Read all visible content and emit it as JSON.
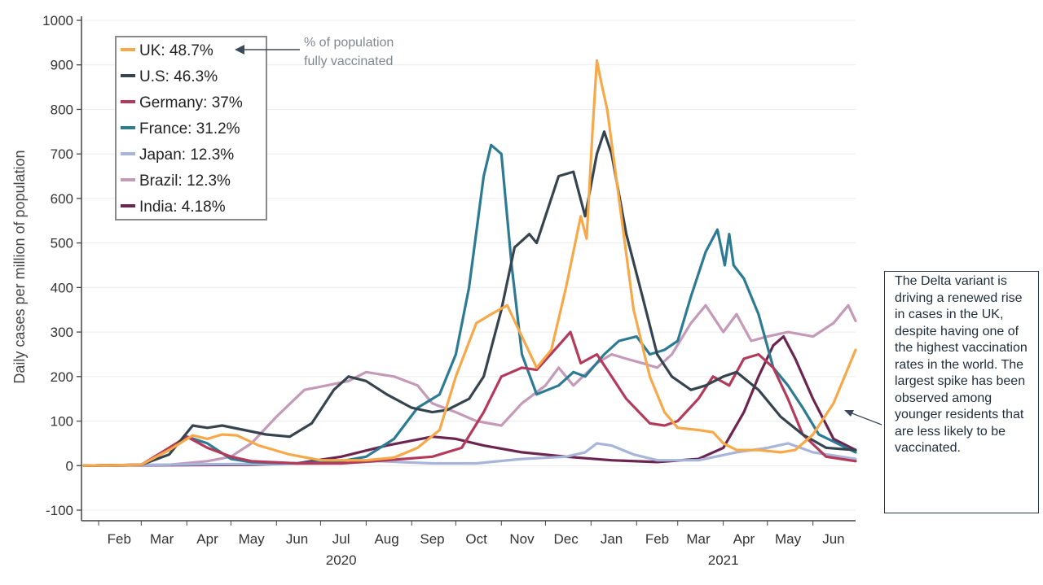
{
  "chart_data": {
    "type": "line",
    "ylabel": "Daily cases per million of population",
    "ylim": [
      -100,
      1000
    ],
    "yticks": [
      -100,
      0,
      100,
      200,
      300,
      400,
      500,
      600,
      700,
      800,
      900,
      1000
    ],
    "xlim": [
      "2020-01-22",
      "2021-06-30"
    ],
    "xticks": [
      {
        "label": "Feb",
        "date": "2020-02-15"
      },
      {
        "label": "Mar",
        "date": "2020-03-15"
      },
      {
        "label": "Apr",
        "date": "2020-04-15"
      },
      {
        "label": "May",
        "date": "2020-05-15"
      },
      {
        "label": "Jun",
        "date": "2020-06-15"
      },
      {
        "label": "Jul",
        "date": "2020-07-15"
      },
      {
        "label": "Aug",
        "date": "2020-08-15"
      },
      {
        "label": "Sep",
        "date": "2020-09-15"
      },
      {
        "label": "Oct",
        "date": "2020-10-15"
      },
      {
        "label": "Nov",
        "date": "2020-11-15"
      },
      {
        "label": "Dec",
        "date": "2020-12-15"
      },
      {
        "label": "Jan",
        "date": "2021-01-15"
      },
      {
        "label": "Feb",
        "date": "2021-02-15"
      },
      {
        "label": "Mar",
        "date": "2021-03-15"
      },
      {
        "label": "Apr",
        "date": "2021-04-15"
      },
      {
        "label": "May",
        "date": "2021-05-15"
      },
      {
        "label": "Jun",
        "date": "2021-06-15"
      }
    ],
    "year_labels": [
      {
        "label": "2020",
        "date": "2020-07-15"
      },
      {
        "label": "2021",
        "date": "2021-04-01"
      }
    ],
    "grid": "horizontal",
    "legend_placement": "top-left",
    "series": [
      {
        "name": "UK: 48.7%",
        "color": "#f7a94a",
        "points": [
          [
            "2020-01-22",
            0
          ],
          [
            "2020-03-01",
            2
          ],
          [
            "2020-03-20",
            35
          ],
          [
            "2020-04-05",
            68
          ],
          [
            "2020-04-15",
            60
          ],
          [
            "2020-04-25",
            70
          ],
          [
            "2020-05-05",
            68
          ],
          [
            "2020-05-20",
            45
          ],
          [
            "2020-06-10",
            25
          ],
          [
            "2020-07-01",
            12
          ],
          [
            "2020-08-01",
            12
          ],
          [
            "2020-08-20",
            18
          ],
          [
            "2020-09-05",
            40
          ],
          [
            "2020-09-20",
            80
          ],
          [
            "2020-10-01",
            200
          ],
          [
            "2020-10-15",
            320
          ],
          [
            "2020-10-25",
            340
          ],
          [
            "2020-11-05",
            360
          ],
          [
            "2020-11-15",
            290
          ],
          [
            "2020-11-25",
            220
          ],
          [
            "2020-12-05",
            260
          ],
          [
            "2020-12-15",
            400
          ],
          [
            "2020-12-25",
            560
          ],
          [
            "2020-12-29",
            510
          ],
          [
            "2021-01-02",
            750
          ],
          [
            "2021-01-05",
            910
          ],
          [
            "2021-01-08",
            860
          ],
          [
            "2021-01-12",
            800
          ],
          [
            "2021-01-20",
            600
          ],
          [
            "2021-01-30",
            350
          ],
          [
            "2021-02-10",
            200
          ],
          [
            "2021-02-20",
            120
          ],
          [
            "2021-03-01",
            85
          ],
          [
            "2021-03-15",
            80
          ],
          [
            "2021-03-25",
            75
          ],
          [
            "2021-04-01",
            50
          ],
          [
            "2021-04-10",
            35
          ],
          [
            "2021-04-25",
            35
          ],
          [
            "2021-05-10",
            30
          ],
          [
            "2021-05-20",
            35
          ],
          [
            "2021-06-01",
            70
          ],
          [
            "2021-06-15",
            140
          ],
          [
            "2021-06-30",
            260
          ]
        ]
      },
      {
        "name": "U.S: 46.3%",
        "color": "#35444f",
        "points": [
          [
            "2020-01-22",
            0
          ],
          [
            "2020-03-01",
            2
          ],
          [
            "2020-03-20",
            25
          ],
          [
            "2020-04-05",
            90
          ],
          [
            "2020-04-15",
            85
          ],
          [
            "2020-04-25",
            90
          ],
          [
            "2020-05-10",
            80
          ],
          [
            "2020-05-25",
            70
          ],
          [
            "2020-06-10",
            65
          ],
          [
            "2020-06-25",
            95
          ],
          [
            "2020-07-10",
            170
          ],
          [
            "2020-07-20",
            200
          ],
          [
            "2020-08-01",
            190
          ],
          [
            "2020-08-15",
            160
          ],
          [
            "2020-09-01",
            130
          ],
          [
            "2020-09-15",
            120
          ],
          [
            "2020-09-25",
            125
          ],
          [
            "2020-10-10",
            150
          ],
          [
            "2020-10-20",
            200
          ],
          [
            "2020-11-01",
            350
          ],
          [
            "2020-11-10",
            490
          ],
          [
            "2020-11-20",
            520
          ],
          [
            "2020-11-25",
            500
          ],
          [
            "2020-12-01",
            560
          ],
          [
            "2020-12-10",
            650
          ],
          [
            "2020-12-20",
            660
          ],
          [
            "2020-12-28",
            560
          ],
          [
            "2021-01-05",
            700
          ],
          [
            "2021-01-10",
            750
          ],
          [
            "2021-01-15",
            700
          ],
          [
            "2021-01-25",
            520
          ],
          [
            "2021-02-05",
            380
          ],
          [
            "2021-02-15",
            250
          ],
          [
            "2021-02-25",
            200
          ],
          [
            "2021-03-10",
            170
          ],
          [
            "2021-03-20",
            180
          ],
          [
            "2021-04-01",
            200
          ],
          [
            "2021-04-10",
            210
          ],
          [
            "2021-04-25",
            170
          ],
          [
            "2021-05-10",
            110
          ],
          [
            "2021-05-25",
            70
          ],
          [
            "2021-06-10",
            40
          ],
          [
            "2021-06-30",
            35
          ]
        ]
      },
      {
        "name": "Germany: 37%",
        "color": "#b33a5a",
        "points": [
          [
            "2020-01-22",
            0
          ],
          [
            "2020-03-01",
            2
          ],
          [
            "2020-03-20",
            40
          ],
          [
            "2020-04-01",
            65
          ],
          [
            "2020-04-15",
            40
          ],
          [
            "2020-05-01",
            20
          ],
          [
            "2020-05-15",
            10
          ],
          [
            "2020-06-15",
            5
          ],
          [
            "2020-07-15",
            5
          ],
          [
            "2020-08-15",
            12
          ],
          [
            "2020-09-15",
            20
          ],
          [
            "2020-10-05",
            40
          ],
          [
            "2020-10-20",
            120
          ],
          [
            "2020-11-01",
            200
          ],
          [
            "2020-11-15",
            220
          ],
          [
            "2020-11-25",
            215
          ],
          [
            "2020-12-10",
            270
          ],
          [
            "2020-12-18",
            300
          ],
          [
            "2020-12-25",
            230
          ],
          [
            "2021-01-05",
            250
          ],
          [
            "2021-01-15",
            200
          ],
          [
            "2021-01-25",
            150
          ],
          [
            "2021-02-10",
            95
          ],
          [
            "2021-02-20",
            90
          ],
          [
            "2021-03-01",
            100
          ],
          [
            "2021-03-15",
            150
          ],
          [
            "2021-03-25",
            200
          ],
          [
            "2021-04-05",
            180
          ],
          [
            "2021-04-15",
            240
          ],
          [
            "2021-04-25",
            250
          ],
          [
            "2021-05-05",
            220
          ],
          [
            "2021-05-15",
            150
          ],
          [
            "2021-05-25",
            70
          ],
          [
            "2021-06-10",
            20
          ],
          [
            "2021-06-30",
            10
          ]
        ]
      },
      {
        "name": "France: 31.2%",
        "color": "#2c7b93",
        "points": [
          [
            "2020-01-22",
            0
          ],
          [
            "2020-03-01",
            2
          ],
          [
            "2020-03-20",
            35
          ],
          [
            "2020-04-01",
            65
          ],
          [
            "2020-04-15",
            50
          ],
          [
            "2020-05-01",
            15
          ],
          [
            "2020-05-15",
            8
          ],
          [
            "2020-06-15",
            5
          ],
          [
            "2020-07-15",
            10
          ],
          [
            "2020-08-01",
            20
          ],
          [
            "2020-08-20",
            60
          ],
          [
            "2020-09-05",
            130
          ],
          [
            "2020-09-20",
            160
          ],
          [
            "2020-10-01",
            250
          ],
          [
            "2020-10-10",
            400
          ],
          [
            "2020-10-20",
            650
          ],
          [
            "2020-10-25",
            720
          ],
          [
            "2020-11-01",
            700
          ],
          [
            "2020-11-08",
            450
          ],
          [
            "2020-11-15",
            250
          ],
          [
            "2020-11-25",
            160
          ],
          [
            "2020-12-10",
            180
          ],
          [
            "2020-12-20",
            210
          ],
          [
            "2020-12-28",
            200
          ],
          [
            "2021-01-10",
            250
          ],
          [
            "2021-01-20",
            280
          ],
          [
            "2021-02-01",
            290
          ],
          [
            "2021-02-10",
            250
          ],
          [
            "2021-02-20",
            260
          ],
          [
            "2021-03-01",
            280
          ],
          [
            "2021-03-10",
            380
          ],
          [
            "2021-03-20",
            480
          ],
          [
            "2021-03-28",
            530
          ],
          [
            "2021-04-02",
            450
          ],
          [
            "2021-04-05",
            520
          ],
          [
            "2021-04-08",
            450
          ],
          [
            "2021-04-15",
            420
          ],
          [
            "2021-04-25",
            340
          ],
          [
            "2021-05-05",
            220
          ],
          [
            "2021-05-15",
            180
          ],
          [
            "2021-05-25",
            130
          ],
          [
            "2021-06-05",
            70
          ],
          [
            "2021-06-30",
            30
          ]
        ]
      },
      {
        "name": "Japan: 12.3%",
        "color": "#a6b5d9",
        "points": [
          [
            "2020-01-22",
            0
          ],
          [
            "2020-04-15",
            3
          ],
          [
            "2020-07-15",
            5
          ],
          [
            "2020-08-10",
            10
          ],
          [
            "2020-09-15",
            5
          ],
          [
            "2020-10-15",
            5
          ],
          [
            "2020-11-15",
            15
          ],
          [
            "2020-12-15",
            20
          ],
          [
            "2020-12-28",
            30
          ],
          [
            "2021-01-05",
            50
          ],
          [
            "2021-01-15",
            45
          ],
          [
            "2021-01-30",
            25
          ],
          [
            "2021-02-15",
            12
          ],
          [
            "2021-03-15",
            12
          ],
          [
            "2021-04-10",
            30
          ],
          [
            "2021-05-01",
            40
          ],
          [
            "2021-05-15",
            50
          ],
          [
            "2021-06-01",
            30
          ],
          [
            "2021-06-30",
            15
          ]
        ]
      },
      {
        "name": "Brazil: 12.3%",
        "color": "#c49ab9",
        "points": [
          [
            "2020-01-22",
            0
          ],
          [
            "2020-03-20",
            2
          ],
          [
            "2020-04-15",
            10
          ],
          [
            "2020-05-01",
            20
          ],
          [
            "2020-05-15",
            50
          ],
          [
            "2020-06-01",
            110
          ],
          [
            "2020-06-20",
            170
          ],
          [
            "2020-07-05",
            180
          ],
          [
            "2020-07-20",
            190
          ],
          [
            "2020-08-01",
            210
          ],
          [
            "2020-08-20",
            200
          ],
          [
            "2020-09-05",
            180
          ],
          [
            "2020-09-15",
            140
          ],
          [
            "2020-10-01",
            120
          ],
          [
            "2020-10-15",
            100
          ],
          [
            "2020-11-01",
            90
          ],
          [
            "2020-11-15",
            140
          ],
          [
            "2020-12-01",
            180
          ],
          [
            "2020-12-10",
            220
          ],
          [
            "2020-12-20",
            180
          ],
          [
            "2021-01-05",
            230
          ],
          [
            "2021-01-15",
            250
          ],
          [
            "2021-01-25",
            240
          ],
          [
            "2021-02-05",
            230
          ],
          [
            "2021-02-15",
            220
          ],
          [
            "2021-02-25",
            250
          ],
          [
            "2021-03-10",
            320
          ],
          [
            "2021-03-20",
            360
          ],
          [
            "2021-04-01",
            300
          ],
          [
            "2021-04-10",
            340
          ],
          [
            "2021-04-20",
            280
          ],
          [
            "2021-05-01",
            290
          ],
          [
            "2021-05-15",
            300
          ],
          [
            "2021-06-01",
            290
          ],
          [
            "2021-06-15",
            320
          ],
          [
            "2021-06-25",
            360
          ],
          [
            "2021-06-30",
            325
          ]
        ]
      },
      {
        "name": "India: 4.18%",
        "color": "#6b2550",
        "points": [
          [
            "2020-01-22",
            0
          ],
          [
            "2020-05-15",
            2
          ],
          [
            "2020-06-15",
            5
          ],
          [
            "2020-07-15",
            20
          ],
          [
            "2020-08-15",
            45
          ],
          [
            "2020-09-15",
            65
          ],
          [
            "2020-10-01",
            60
          ],
          [
            "2020-10-20",
            45
          ],
          [
            "2020-11-15",
            30
          ],
          [
            "2020-12-15",
            20
          ],
          [
            "2021-01-15",
            12
          ],
          [
            "2021-02-15",
            8
          ],
          [
            "2021-03-15",
            15
          ],
          [
            "2021-04-01",
            40
          ],
          [
            "2021-04-15",
            120
          ],
          [
            "2021-04-25",
            200
          ],
          [
            "2021-05-05",
            270
          ],
          [
            "2021-05-12",
            290
          ],
          [
            "2021-05-20",
            240
          ],
          [
            "2021-06-01",
            150
          ],
          [
            "2021-06-15",
            60
          ],
          [
            "2021-06-30",
            35
          ]
        ]
      }
    ],
    "annotation": {
      "text_lines": [
        "% of population",
        "fully vaccinated"
      ]
    },
    "callout": {
      "text": "The Delta variant is driving a renewed rise in cases in the UK, despite having one of the highest vaccination rates in the world. The largest spike has been observed among younger residents that are less likely to be vaccinated."
    }
  }
}
